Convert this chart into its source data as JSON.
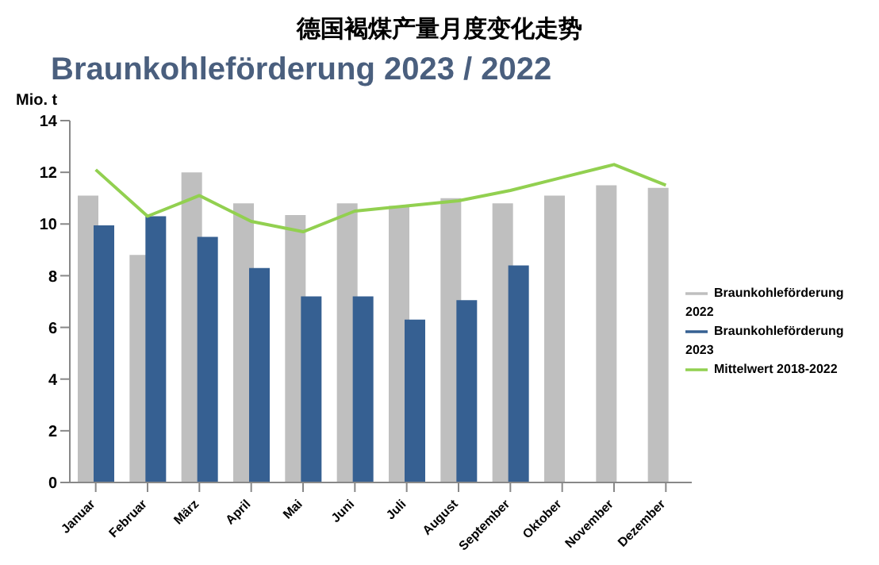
{
  "chart_data": {
    "type": "bar",
    "title": "德国褐煤产量月度变化走势",
    "subtitle": "Braunkohleförderung 2023 / 2022",
    "ylabel": "Mio. t",
    "categories": [
      "Januar",
      "Februar",
      "März",
      "April",
      "Mai",
      "Juni",
      "Juli",
      "August",
      "September",
      "Oktober",
      "November",
      "Dezember"
    ],
    "series": [
      {
        "name": "Braunkohleförderung 2022",
        "color": "#bfbfbf",
        "values": [
          11.1,
          8.8,
          12.0,
          10.8,
          10.35,
          10.8,
          10.7,
          11.0,
          10.8,
          11.1,
          11.5,
          11.4
        ]
      },
      {
        "name": "Braunkohleförderung 2023",
        "color": "#366092",
        "values": [
          9.95,
          10.3,
          9.5,
          8.3,
          7.2,
          7.2,
          6.3,
          7.05,
          8.4,
          null,
          null,
          null
        ]
      },
      {
        "name": "Mittelwert 2018-2022",
        "type": "line",
        "color": "#92d050",
        "values": [
          12.1,
          10.3,
          11.1,
          10.1,
          9.7,
          10.5,
          10.7,
          10.9,
          11.3,
          11.8,
          12.3,
          11.5
        ]
      }
    ],
    "ylim": [
      0,
      14
    ],
    "yticks": [
      0,
      2,
      4,
      6,
      8,
      10,
      12,
      14
    ],
    "grid": false,
    "legend": "right",
    "marker": "none",
    "line_style": "solid"
  }
}
